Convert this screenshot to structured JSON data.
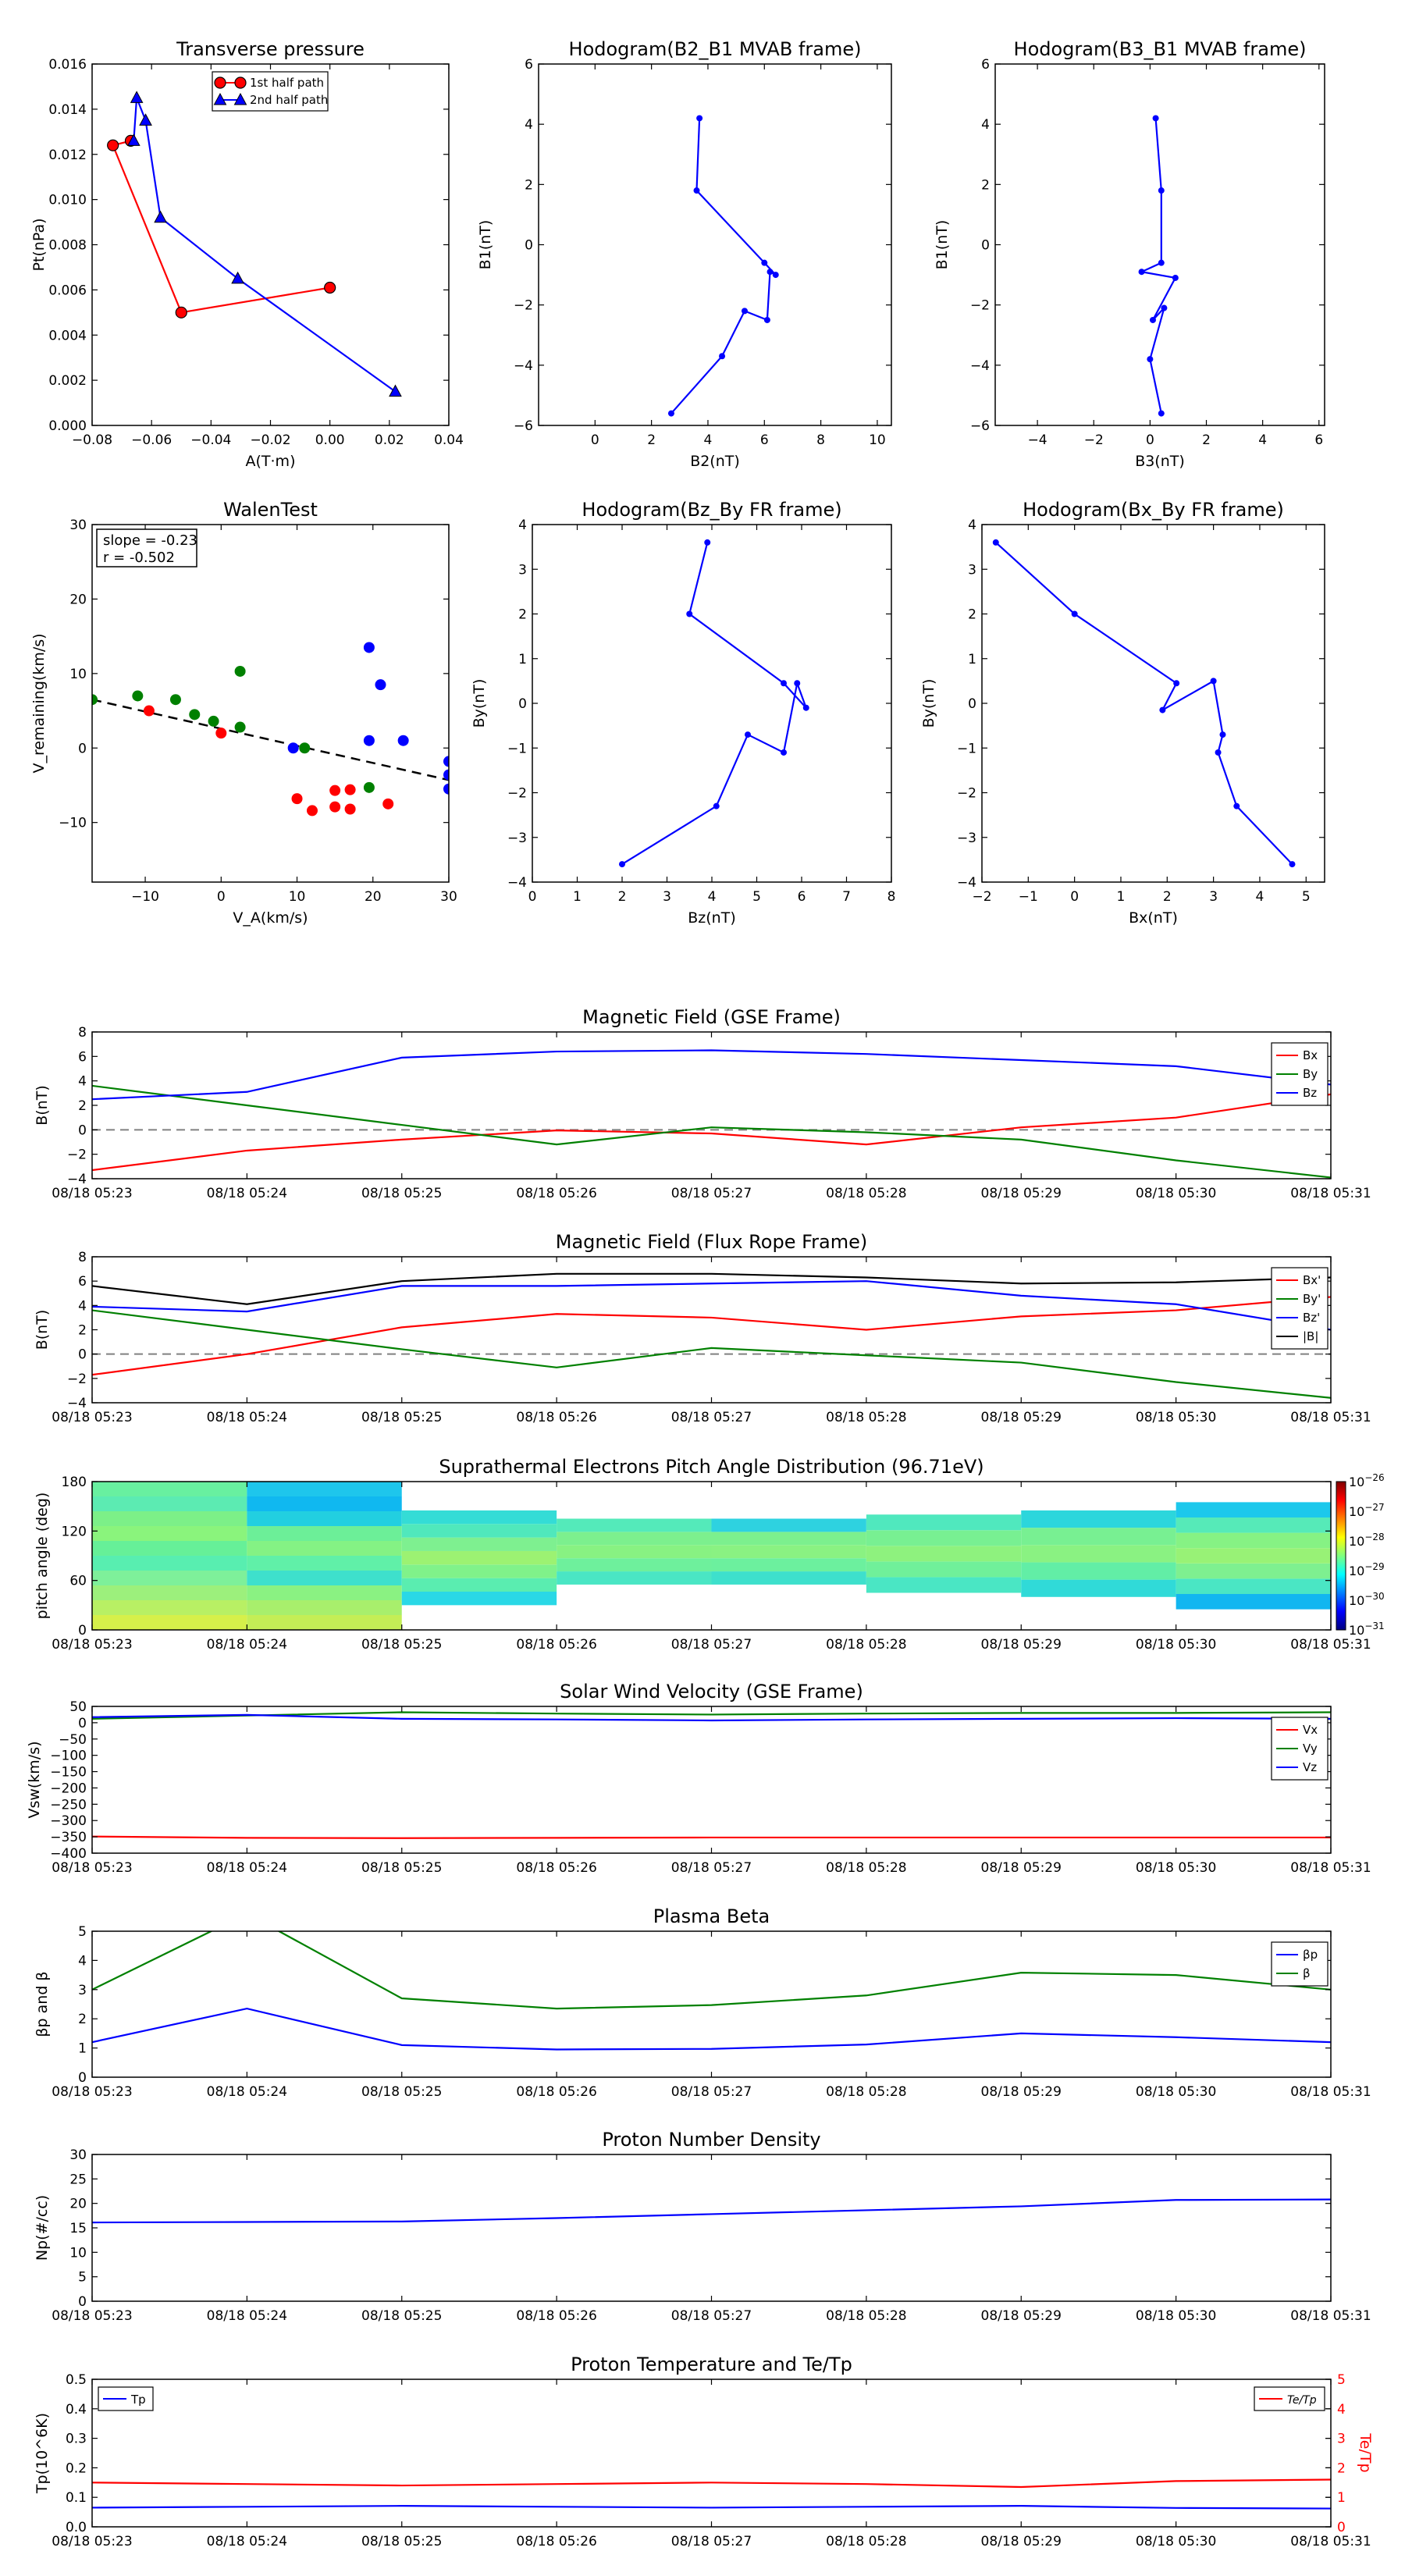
{
  "figure": {
    "background": "#ffffff",
    "axis_color": "#000000",
    "zero_line_color": "#808080"
  },
  "time_ticks": [
    "08/18 05:23",
    "08/18 05:24",
    "08/18 05:25",
    "08/18 05:26",
    "08/18 05:27",
    "08/18 05:28",
    "08/18 05:29",
    "08/18 05:30",
    "08/18 05:31"
  ],
  "chart_data": [
    {
      "id": "tp",
      "type": "line",
      "title": "Transverse pressure",
      "xlabel": "A(T·m)",
      "ylabel": "Pt(nPa)",
      "xlim": [
        -0.08,
        0.04
      ],
      "ylim": [
        0,
        0.016
      ],
      "xticks": [
        -0.08,
        -0.06,
        -0.04,
        -0.02,
        0.0,
        0.02,
        0.04
      ],
      "xtick_labels": [
        "−0.08",
        "−0.06",
        "−0.04",
        "−0.02",
        "0.00",
        "0.02",
        "0.04"
      ],
      "yticks": [
        0,
        0.002,
        0.004,
        0.006,
        0.008,
        0.01,
        0.012,
        0.014,
        0.016
      ],
      "ytick_labels": [
        "0.000",
        "0.002",
        "0.004",
        "0.006",
        "0.008",
        "0.010",
        "0.012",
        "0.014",
        "0.016"
      ],
      "legend": "top-center",
      "series": [
        {
          "name": "1st half path",
          "color": "#ff0000",
          "marker": "circle",
          "x": [
            0.0,
            -0.05,
            -0.073,
            -0.067
          ],
          "y": [
            0.0061,
            0.005,
            0.0124,
            0.0126
          ]
        },
        {
          "name": "2nd half path",
          "color": "#0000ff",
          "marker": "triangle",
          "x": [
            0.022,
            -0.031,
            -0.057,
            -0.062,
            -0.065,
            -0.066
          ],
          "y": [
            0.0015,
            0.0065,
            0.0092,
            0.0135,
            0.0145,
            0.0126
          ]
        }
      ]
    },
    {
      "id": "h1",
      "type": "line",
      "title": "Hodogram(B2_B1 MVAB frame)",
      "xlabel": "B2(nT)",
      "ylabel": "B1(nT)",
      "xlim": [
        -2,
        10.5
      ],
      "ylim": [
        -6,
        6
      ],
      "xticks": [
        0,
        2,
        4,
        6,
        8,
        10
      ],
      "xtick_labels": [
        "0",
        "2",
        "4",
        "6",
        "8",
        "10"
      ],
      "yticks": [
        -6,
        -4,
        -2,
        0,
        2,
        4,
        6
      ],
      "ytick_labels": [
        "−6",
        "−4",
        "−2",
        "0",
        "2",
        "4",
        "6"
      ],
      "series": [
        {
          "color": "#0000ff",
          "marker": "dot",
          "x": [
            3.7,
            3.6,
            6.0,
            6.4,
            6.2,
            6.1,
            5.3,
            4.5,
            2.7
          ],
          "y": [
            4.2,
            1.8,
            -0.6,
            -1.0,
            -0.9,
            -2.5,
            -2.2,
            -3.7,
            -5.6
          ]
        }
      ]
    },
    {
      "id": "h2",
      "type": "line",
      "title": "Hodogram(B3_B1 MVAB frame)",
      "xlabel": "B3(nT)",
      "ylabel": "B1(nT)",
      "xlim": [
        -5.5,
        6.2
      ],
      "ylim": [
        -6,
        6
      ],
      "xticks": [
        -4,
        -2,
        0,
        2,
        4,
        6
      ],
      "xtick_labels": [
        "−4",
        "−2",
        "0",
        "2",
        "4",
        "6"
      ],
      "yticks": [
        -6,
        -4,
        -2,
        0,
        2,
        4,
        6
      ],
      "ytick_labels": [
        "−6",
        "−4",
        "−2",
        "0",
        "2",
        "4",
        "6"
      ],
      "series": [
        {
          "color": "#0000ff",
          "marker": "dot",
          "x": [
            0.2,
            0.4,
            0.4,
            -0.3,
            0.9,
            0.1,
            0.5,
            0.0,
            0.4
          ],
          "y": [
            4.2,
            1.8,
            -0.6,
            -0.9,
            -1.1,
            -2.5,
            -2.1,
            -3.8,
            -5.6
          ]
        }
      ]
    },
    {
      "id": "walen",
      "type": "scatter",
      "title": "WalenTest",
      "xlabel": "V_A(km/s)",
      "ylabel": "V_remaining(km/s)",
      "xlim": [
        -17,
        30
      ],
      "ylim": [
        -18,
        30
      ],
      "xticks": [
        -10,
        0,
        10,
        20,
        30
      ],
      "xtick_labels": [
        "−10",
        "0",
        "10",
        "20",
        "30"
      ],
      "yticks": [
        -10,
        0,
        10,
        20,
        30
      ],
      "ytick_labels": [
        "−10",
        "0",
        "10",
        "20",
        "30"
      ],
      "annotation": [
        "slope = -0.23",
        "r = -0.502"
      ],
      "fit": {
        "x": [
          -17,
          30
        ],
        "y": [
          6.5,
          -4.3
        ],
        "color": "#000000",
        "dash": true
      },
      "series": [
        {
          "color": "#ff0000",
          "x": [
            -9.5,
            0,
            10,
            12,
            15,
            15,
            17,
            17,
            22
          ],
          "y": [
            5,
            2,
            -6.8,
            -8.4,
            -5.7,
            -7.9,
            -5.6,
            -8.2,
            -7.5
          ]
        },
        {
          "color": "#008000",
          "x": [
            -17,
            -11,
            -6,
            -3.5,
            -1,
            2.5,
            2.5,
            11,
            19.5
          ],
          "y": [
            6.5,
            7,
            6.5,
            4.5,
            3.6,
            2.8,
            10.3,
            0,
            -5.3
          ]
        },
        {
          "color": "#0000ff",
          "x": [
            9.5,
            19.5,
            19.5,
            21,
            24,
            30,
            30,
            30
          ],
          "y": [
            0,
            13.5,
            1,
            8.5,
            1,
            -1.8,
            -3.6,
            -5.5
          ]
        }
      ]
    },
    {
      "id": "h3",
      "type": "line",
      "title": "Hodogram(Bz_By FR frame)",
      "xlabel": "Bz(nT)",
      "ylabel": "By(nT)",
      "xlim": [
        0,
        8
      ],
      "ylim": [
        -4,
        4
      ],
      "xticks": [
        0,
        1,
        2,
        3,
        4,
        5,
        6,
        7,
        8
      ],
      "xtick_labels": [
        "0",
        "1",
        "2",
        "3",
        "4",
        "5",
        "6",
        "7",
        "8"
      ],
      "yticks": [
        -4,
        -3,
        -2,
        -1,
        0,
        1,
        2,
        3,
        4
      ],
      "ytick_labels": [
        "−4",
        "−3",
        "−2",
        "−1",
        "0",
        "1",
        "2",
        "3",
        "4"
      ],
      "series": [
        {
          "color": "#0000ff",
          "marker": "dot",
          "x": [
            3.9,
            3.5,
            5.6,
            6.1,
            5.9,
            5.6,
            4.8,
            4.1,
            2.0
          ],
          "y": [
            3.6,
            2.0,
            0.45,
            -0.1,
            0.45,
            -1.1,
            -0.7,
            -2.3,
            -3.6
          ]
        }
      ]
    },
    {
      "id": "h4",
      "type": "line",
      "title": "Hodogram(Bx_By FR frame)",
      "xlabel": "Bx(nT)",
      "ylabel": "By(nT)",
      "xlim": [
        -2,
        5.4
      ],
      "ylim": [
        -4,
        4
      ],
      "xticks": [
        -2,
        -1,
        0,
        1,
        2,
        3,
        4,
        5
      ],
      "xtick_labels": [
        "−2",
        "−1",
        "0",
        "1",
        "2",
        "3",
        "4",
        "5"
      ],
      "yticks": [
        -4,
        -3,
        -2,
        -1,
        0,
        1,
        2,
        3,
        4
      ],
      "ytick_labels": [
        "−4",
        "−3",
        "−2",
        "−1",
        "0",
        "1",
        "2",
        "3",
        "4"
      ],
      "series": [
        {
          "color": "#0000ff",
          "marker": "dot",
          "x": [
            -1.7,
            0.0,
            2.2,
            1.9,
            3.0,
            3.2,
            3.1,
            3.5,
            4.7
          ],
          "y": [
            3.6,
            2.0,
            0.45,
            -0.15,
            0.5,
            -0.7,
            -1.1,
            -2.3,
            -3.6
          ]
        }
      ]
    },
    {
      "id": "bgse",
      "type": "line",
      "title": "Magnetic Field (GSE Frame)",
      "ylabel": "B(nT)",
      "ylim": [
        -4,
        8
      ],
      "yticks": [
        -4,
        -2,
        0,
        2,
        4,
        6,
        8
      ],
      "ytick_labels": [
        "−4",
        "−2",
        "0",
        "2",
        "4",
        "6",
        "8"
      ],
      "zero_line": true,
      "legend": "right",
      "series": [
        {
          "name": "Bx",
          "color": "#ff0000",
          "values": [
            -3.3,
            -1.7,
            -0.8,
            -0.05,
            -0.3,
            -1.2,
            0.2,
            1.0,
            2.9
          ]
        },
        {
          "name": "By",
          "color": "#008000",
          "values": [
            3.6,
            2.0,
            0.4,
            -1.2,
            0.2,
            -0.2,
            -0.8,
            -2.5,
            -3.9
          ]
        },
        {
          "name": "Bz",
          "color": "#0000ff",
          "values": [
            2.5,
            3.1,
            5.9,
            6.4,
            6.5,
            6.2,
            5.7,
            5.2,
            3.7
          ]
        }
      ]
    },
    {
      "id": "bfr",
      "type": "line",
      "title": "Magnetic Field (Flux Rope Frame)",
      "ylabel": "B(nT)",
      "ylim": [
        -4,
        8
      ],
      "yticks": [
        -4,
        -2,
        0,
        2,
        4,
        6,
        8
      ],
      "ytick_labels": [
        "−4",
        "−2",
        "0",
        "2",
        "4",
        "6",
        "8"
      ],
      "zero_line": true,
      "legend": "right",
      "series": [
        {
          "name": "Bx'",
          "color": "#ff0000",
          "values": [
            -1.7,
            0.0,
            2.2,
            3.3,
            3.0,
            2.0,
            3.1,
            3.6,
            4.7
          ]
        },
        {
          "name": "By'",
          "color": "#008000",
          "values": [
            3.6,
            2.0,
            0.4,
            -1.1,
            0.5,
            -0.1,
            -0.7,
            -2.3,
            -3.6
          ]
        },
        {
          "name": "Bz'",
          "color": "#0000ff",
          "values": [
            3.9,
            3.5,
            5.6,
            5.6,
            5.8,
            6.0,
            4.8,
            4.1,
            2.0
          ]
        },
        {
          "name": "|B|",
          "color": "#000000",
          "values": [
            5.6,
            4.1,
            6.0,
            6.6,
            6.6,
            6.3,
            5.8,
            5.9,
            6.3
          ]
        }
      ]
    },
    {
      "id": "pad",
      "type": "heatmap",
      "title": "Suprathermal Electrons Pitch Angle Distribution (96.71eV)",
      "ylabel": "pitch angle (deg)",
      "ylim": [
        0,
        180
      ],
      "yticks": [
        0,
        60,
        120,
        180
      ],
      "ytick_labels": [
        "0",
        "60",
        "120",
        "180"
      ],
      "colorbar_ticks": [
        "10^-26",
        "10^-27",
        "10^-28",
        "10^-29",
        "10^-30",
        "10^-31"
      ],
      "columns": [
        {
          "from": 0,
          "to": 1,
          "ymin": 0,
          "ymax": 180,
          "colors": [
            "#d6f04a",
            "#b8f064",
            "#9cf07c",
            "#7ef09a",
            "#58eeb0",
            "#66f098",
            "#8af47c",
            "#7cf088",
            "#5cebb2",
            "#68f0a0"
          ]
        },
        {
          "from": 1,
          "to": 2,
          "ymin": 0,
          "ymax": 180,
          "colors": [
            "#c4ee56",
            "#a8ef6c",
            "#8af282",
            "#3ee0cc",
            "#60f0a8",
            "#84f284",
            "#6cef98",
            "#22cfe0",
            "#10b8f0",
            "#1ec6ec"
          ]
        },
        {
          "from": 2,
          "to": 3,
          "ymin": 30,
          "ymax": 145,
          "colors": [
            "#2ad8e6",
            "#5aedb0",
            "#80f28a",
            "#9cf272",
            "#7ef090",
            "#50e8bc",
            "#34dcd6"
          ]
        },
        {
          "from": 3,
          "to": 4,
          "ymin": 55,
          "ymax": 135,
          "colors": [
            "#4ae6c4",
            "#6ef09c",
            "#88f282",
            "#7cf08e",
            "#54eaba"
          ]
        },
        {
          "from": 4,
          "to": 5,
          "ymin": 55,
          "ymax": 135,
          "colors": [
            "#3ee0cc",
            "#6cf09e",
            "#8af282",
            "#7cf08e",
            "#2ed2e0"
          ]
        },
        {
          "from": 5,
          "to": 6,
          "ymin": 45,
          "ymax": 140,
          "colors": [
            "#4ae6c4",
            "#70f09a",
            "#8ef27e",
            "#78f092",
            "#50e8be"
          ]
        },
        {
          "from": 6,
          "to": 7,
          "ymin": 40,
          "ymax": 145,
          "colors": [
            "#30dad8",
            "#62eea6",
            "#8af282",
            "#78f092",
            "#2cd6dc"
          ]
        },
        {
          "from": 7,
          "to": 8,
          "ymin": 25,
          "ymax": 155,
          "colors": [
            "#12b6f0",
            "#4ae6c4",
            "#7ef090",
            "#98f276",
            "#86f284",
            "#56eab8",
            "#1cc8ec"
          ]
        }
      ]
    },
    {
      "id": "vsw",
      "type": "line",
      "title": "Solar Wind Velocity (GSE Frame)",
      "ylabel": "Vsw(km/s)",
      "ylim": [
        -400,
        50
      ],
      "yticks": [
        -400,
        -350,
        -300,
        -250,
        -200,
        -150,
        -100,
        -50,
        0,
        50
      ],
      "ytick_labels": [
        "−400",
        "−350",
        "−300",
        "−250",
        "−200",
        "−150",
        "−100",
        "−50",
        "0",
        "50"
      ],
      "legend": "right",
      "series": [
        {
          "name": "Vx",
          "color": "#ff0000",
          "values": [
            -349,
            -353,
            -354,
            -353,
            -352,
            -352,
            -352,
            -352,
            -352
          ]
        },
        {
          "name": "Vy",
          "color": "#008000",
          "values": [
            12,
            22,
            32,
            28,
            25,
            28,
            30,
            30,
            32
          ]
        },
        {
          "name": "Vz",
          "color": "#0000ff",
          "values": [
            17,
            24,
            12,
            10,
            7,
            10,
            12,
            14,
            12
          ]
        }
      ]
    },
    {
      "id": "beta",
      "type": "line",
      "title": "Plasma Beta",
      "ylabel": "βp and β",
      "ylim": [
        0,
        5
      ],
      "yticks": [
        0,
        1,
        2,
        3,
        4,
        5
      ],
      "ytick_labels": [
        "0",
        "1",
        "2",
        "3",
        "4",
        "5"
      ],
      "legend": "top-right",
      "series": [
        {
          "name": "βp",
          "color": "#0000ff",
          "values": [
            1.2,
            2.35,
            1.1,
            0.95,
            0.97,
            1.12,
            1.5,
            1.37,
            1.2
          ]
        },
        {
          "name": "β",
          "color": "#008000",
          "values": [
            3.0,
            5.6,
            2.7,
            2.35,
            2.47,
            2.8,
            3.58,
            3.5,
            3.0
          ]
        }
      ]
    },
    {
      "id": "np",
      "type": "line",
      "title": "Proton Number Density",
      "ylabel": "Np(#/cc)",
      "ylim": [
        0,
        30
      ],
      "yticks": [
        0,
        5,
        10,
        15,
        20,
        25,
        30
      ],
      "ytick_labels": [
        "0",
        "5",
        "10",
        "15",
        "20",
        "25",
        "30"
      ],
      "series": [
        {
          "color": "#0000ff",
          "values": [
            16.1,
            16.2,
            16.3,
            17.0,
            17.8,
            18.6,
            19.4,
            20.7,
            20.8
          ]
        }
      ]
    },
    {
      "id": "temp",
      "type": "line",
      "title": "Proton Temperature and Te/Tp",
      "ylabel": "Tp(10^6K)",
      "ylim": [
        0,
        0.5
      ],
      "yticks": [
        0,
        0.1,
        0.2,
        0.3,
        0.4,
        0.5
      ],
      "ytick_labels": [
        "0.0",
        "0.1",
        "0.2",
        "0.3",
        "0.4",
        "0.5"
      ],
      "y2label": "Te/Tp",
      "y2lim": [
        0,
        5
      ],
      "y2ticks": [
        0,
        1,
        2,
        3,
        4,
        5
      ],
      "y2tick_labels": [
        "0",
        "1",
        "2",
        "3",
        "4",
        "5"
      ],
      "series": [
        {
          "name": "Tp",
          "color": "#0000ff",
          "axis": "left",
          "values": [
            0.065,
            0.068,
            0.071,
            0.068,
            0.065,
            0.068,
            0.071,
            0.064,
            0.062
          ]
        },
        {
          "name": "Te/Tp",
          "color": "#ff0000",
          "axis": "right",
          "values": [
            1.5,
            1.45,
            1.4,
            1.45,
            1.5,
            1.45,
            1.35,
            1.55,
            1.6
          ]
        }
      ]
    }
  ]
}
